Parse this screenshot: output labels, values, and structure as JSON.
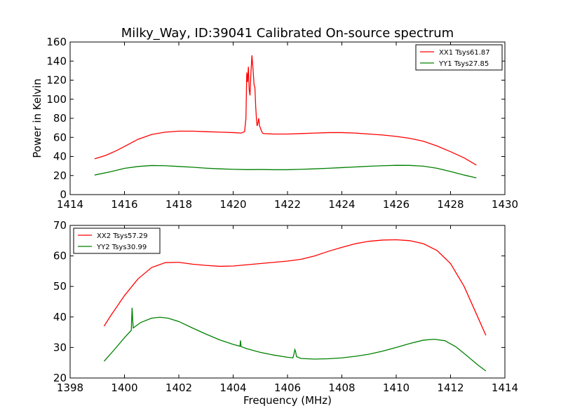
{
  "title": "Milky_Way, ID:39041 Calibrated On-source spectrum",
  "chart_data": [
    {
      "type": "line",
      "title": "Milky_Way, ID:39041 Calibrated On-source spectrum",
      "xlabel": "",
      "ylabel": "Power in Kelvin",
      "xlim": [
        1414,
        1430
      ],
      "ylim": [
        0,
        160
      ],
      "xticks": [
        "1414",
        "1416",
        "1418",
        "1420",
        "1422",
        "1424",
        "1426",
        "1428",
        "1430"
      ],
      "yticks": [
        "0",
        "20",
        "40",
        "60",
        "80",
        "100",
        "120",
        "140",
        "160"
      ],
      "legend_position": "top-right",
      "grid": false,
      "series": [
        {
          "name": "XX1 Tsys61.87",
          "color": "#ff0000",
          "points": [
            [
              1414.9,
              37.5
            ],
            [
              1415.3,
              41
            ],
            [
              1415.7,
              46
            ],
            [
              1416.1,
              52
            ],
            [
              1416.5,
              58
            ],
            [
              1417.0,
              63
            ],
            [
              1417.5,
              65.5
            ],
            [
              1418.0,
              66.5
            ],
            [
              1418.5,
              66.5
            ],
            [
              1419.0,
              66
            ],
            [
              1419.5,
              65.5
            ],
            [
              1420.0,
              65
            ],
            [
              1420.3,
              64.5
            ],
            [
              1420.42,
              66
            ],
            [
              1420.47,
              80
            ],
            [
              1420.5,
              128
            ],
            [
              1420.53,
              118
            ],
            [
              1420.56,
              134
            ],
            [
              1420.59,
              110
            ],
            [
              1420.62,
              104
            ],
            [
              1420.65,
              125
            ],
            [
              1420.69,
              146
            ],
            [
              1420.73,
              132
            ],
            [
              1420.77,
              115
            ],
            [
              1420.8,
              112
            ],
            [
              1420.83,
              92
            ],
            [
              1420.86,
              78
            ],
            [
              1420.88,
              72
            ],
            [
              1420.91,
              75
            ],
            [
              1420.94,
              80
            ],
            [
              1420.97,
              72
            ],
            [
              1421.0,
              70
            ],
            [
              1421.05,
              66
            ],
            [
              1421.1,
              64
            ],
            [
              1421.5,
              63.5
            ],
            [
              1422.0,
              63.5
            ],
            [
              1422.5,
              64
            ],
            [
              1423.0,
              64.5
            ],
            [
              1423.5,
              65
            ],
            [
              1424.0,
              65
            ],
            [
              1424.5,
              64.5
            ],
            [
              1425.0,
              63.5
            ],
            [
              1425.5,
              62.5
            ],
            [
              1426.0,
              61
            ],
            [
              1426.5,
              59
            ],
            [
              1427.0,
              56
            ],
            [
              1427.5,
              51
            ],
            [
              1428.0,
              45
            ],
            [
              1428.5,
              38.5
            ],
            [
              1428.95,
              31
            ]
          ]
        },
        {
          "name": "YY1 Tsys27.85",
          "color": "#008000",
          "points": [
            [
              1414.9,
              20.5
            ],
            [
              1415.5,
              24
            ],
            [
              1416.0,
              27.5
            ],
            [
              1416.5,
              29.5
            ],
            [
              1417.0,
              30.5
            ],
            [
              1417.5,
              30.3
            ],
            [
              1418.0,
              29.5
            ],
            [
              1418.5,
              28.7
            ],
            [
              1419.0,
              27.7
            ],
            [
              1419.5,
              27
            ],
            [
              1420.0,
              26.5
            ],
            [
              1420.5,
              26.2
            ],
            [
              1421.0,
              26.3
            ],
            [
              1421.5,
              26.1
            ],
            [
              1422.0,
              26.1
            ],
            [
              1422.5,
              26.5
            ],
            [
              1423.0,
              27
            ],
            [
              1423.5,
              27.6
            ],
            [
              1424.0,
              28.3
            ],
            [
              1424.5,
              29
            ],
            [
              1425.0,
              29.7
            ],
            [
              1425.5,
              30.3
            ],
            [
              1426.0,
              30.7
            ],
            [
              1426.5,
              30.6
            ],
            [
              1427.0,
              29.8
            ],
            [
              1427.5,
              27.6
            ],
            [
              1428.0,
              24.2
            ],
            [
              1428.5,
              20.5
            ],
            [
              1428.95,
              17.5
            ]
          ]
        }
      ]
    },
    {
      "type": "line",
      "title": "",
      "xlabel": "Frequency (MHz)",
      "ylabel": "",
      "xlim": [
        1398,
        1414
      ],
      "ylim": [
        20,
        70
      ],
      "xticks": [
        "1398",
        "1400",
        "1402",
        "1404",
        "1406",
        "1408",
        "1410",
        "1412",
        "1414"
      ],
      "yticks": [
        "20",
        "30",
        "40",
        "50",
        "60",
        "70"
      ],
      "legend_position": "top-left",
      "grid": false,
      "series": [
        {
          "name": "XX2 Tsys57.29",
          "color": "#ff0000",
          "points": [
            [
              1399.25,
              37
            ],
            [
              1399.5,
              40.5
            ],
            [
              1400.0,
              47
            ],
            [
              1400.5,
              52.5
            ],
            [
              1401.0,
              56.2
            ],
            [
              1401.5,
              57.8
            ],
            [
              1402.0,
              57.9
            ],
            [
              1402.5,
              57.3
            ],
            [
              1403.0,
              56.9
            ],
            [
              1403.5,
              56.6
            ],
            [
              1404.0,
              56.7
            ],
            [
              1404.5,
              57.1
            ],
            [
              1405.0,
              57.5
            ],
            [
              1405.5,
              57.9
            ],
            [
              1406.0,
              58.3
            ],
            [
              1406.5,
              58.9
            ],
            [
              1407.0,
              60
            ],
            [
              1407.5,
              61.5
            ],
            [
              1408.0,
              62.8
            ],
            [
              1408.5,
              64
            ],
            [
              1409.0,
              64.8
            ],
            [
              1409.5,
              65.2
            ],
            [
              1410.0,
              65.3
            ],
            [
              1410.5,
              65
            ],
            [
              1411.0,
              64
            ],
            [
              1411.5,
              61.8
            ],
            [
              1412.0,
              57.5
            ],
            [
              1412.5,
              50
            ],
            [
              1413.0,
              40
            ],
            [
              1413.3,
              34
            ]
          ]
        },
        {
          "name": "YY2 Tsys30.99",
          "color": "#008000",
          "points": [
            [
              1399.25,
              25.5
            ],
            [
              1399.6,
              29
            ],
            [
              1400.0,
              33.2
            ],
            [
              1400.25,
              35.6
            ],
            [
              1400.28,
              43
            ],
            [
              1400.32,
              36.4
            ],
            [
              1400.6,
              38.2
            ],
            [
              1401.0,
              39.6
            ],
            [
              1401.3,
              39.9
            ],
            [
              1401.6,
              39.6
            ],
            [
              1402.0,
              38.5
            ],
            [
              1402.5,
              36.4
            ],
            [
              1403.0,
              34.4
            ],
            [
              1403.5,
              32.5
            ],
            [
              1404.0,
              31
            ],
            [
              1404.25,
              30.4
            ],
            [
              1404.27,
              32.3
            ],
            [
              1404.29,
              30.3
            ],
            [
              1404.5,
              29.6
            ],
            [
              1405.0,
              28.4
            ],
            [
              1405.5,
              27.5
            ],
            [
              1406.0,
              26.8
            ],
            [
              1406.2,
              26.6
            ],
            [
              1406.24,
              28
            ],
            [
              1406.27,
              29.3
            ],
            [
              1406.3,
              28.6
            ],
            [
              1406.33,
              27
            ],
            [
              1406.5,
              26.4
            ],
            [
              1407.0,
              26.2
            ],
            [
              1407.5,
              26.3
            ],
            [
              1408.0,
              26.6
            ],
            [
              1408.5,
              27.1
            ],
            [
              1409.0,
              27.8
            ],
            [
              1409.5,
              28.8
            ],
            [
              1410.0,
              30
            ],
            [
              1410.5,
              31.3
            ],
            [
              1411.0,
              32.4
            ],
            [
              1411.4,
              32.7
            ],
            [
              1411.8,
              32.2
            ],
            [
              1412.2,
              30.2
            ],
            [
              1412.6,
              27.3
            ],
            [
              1413.0,
              24.3
            ],
            [
              1413.3,
              22.3
            ]
          ]
        }
      ]
    }
  ]
}
